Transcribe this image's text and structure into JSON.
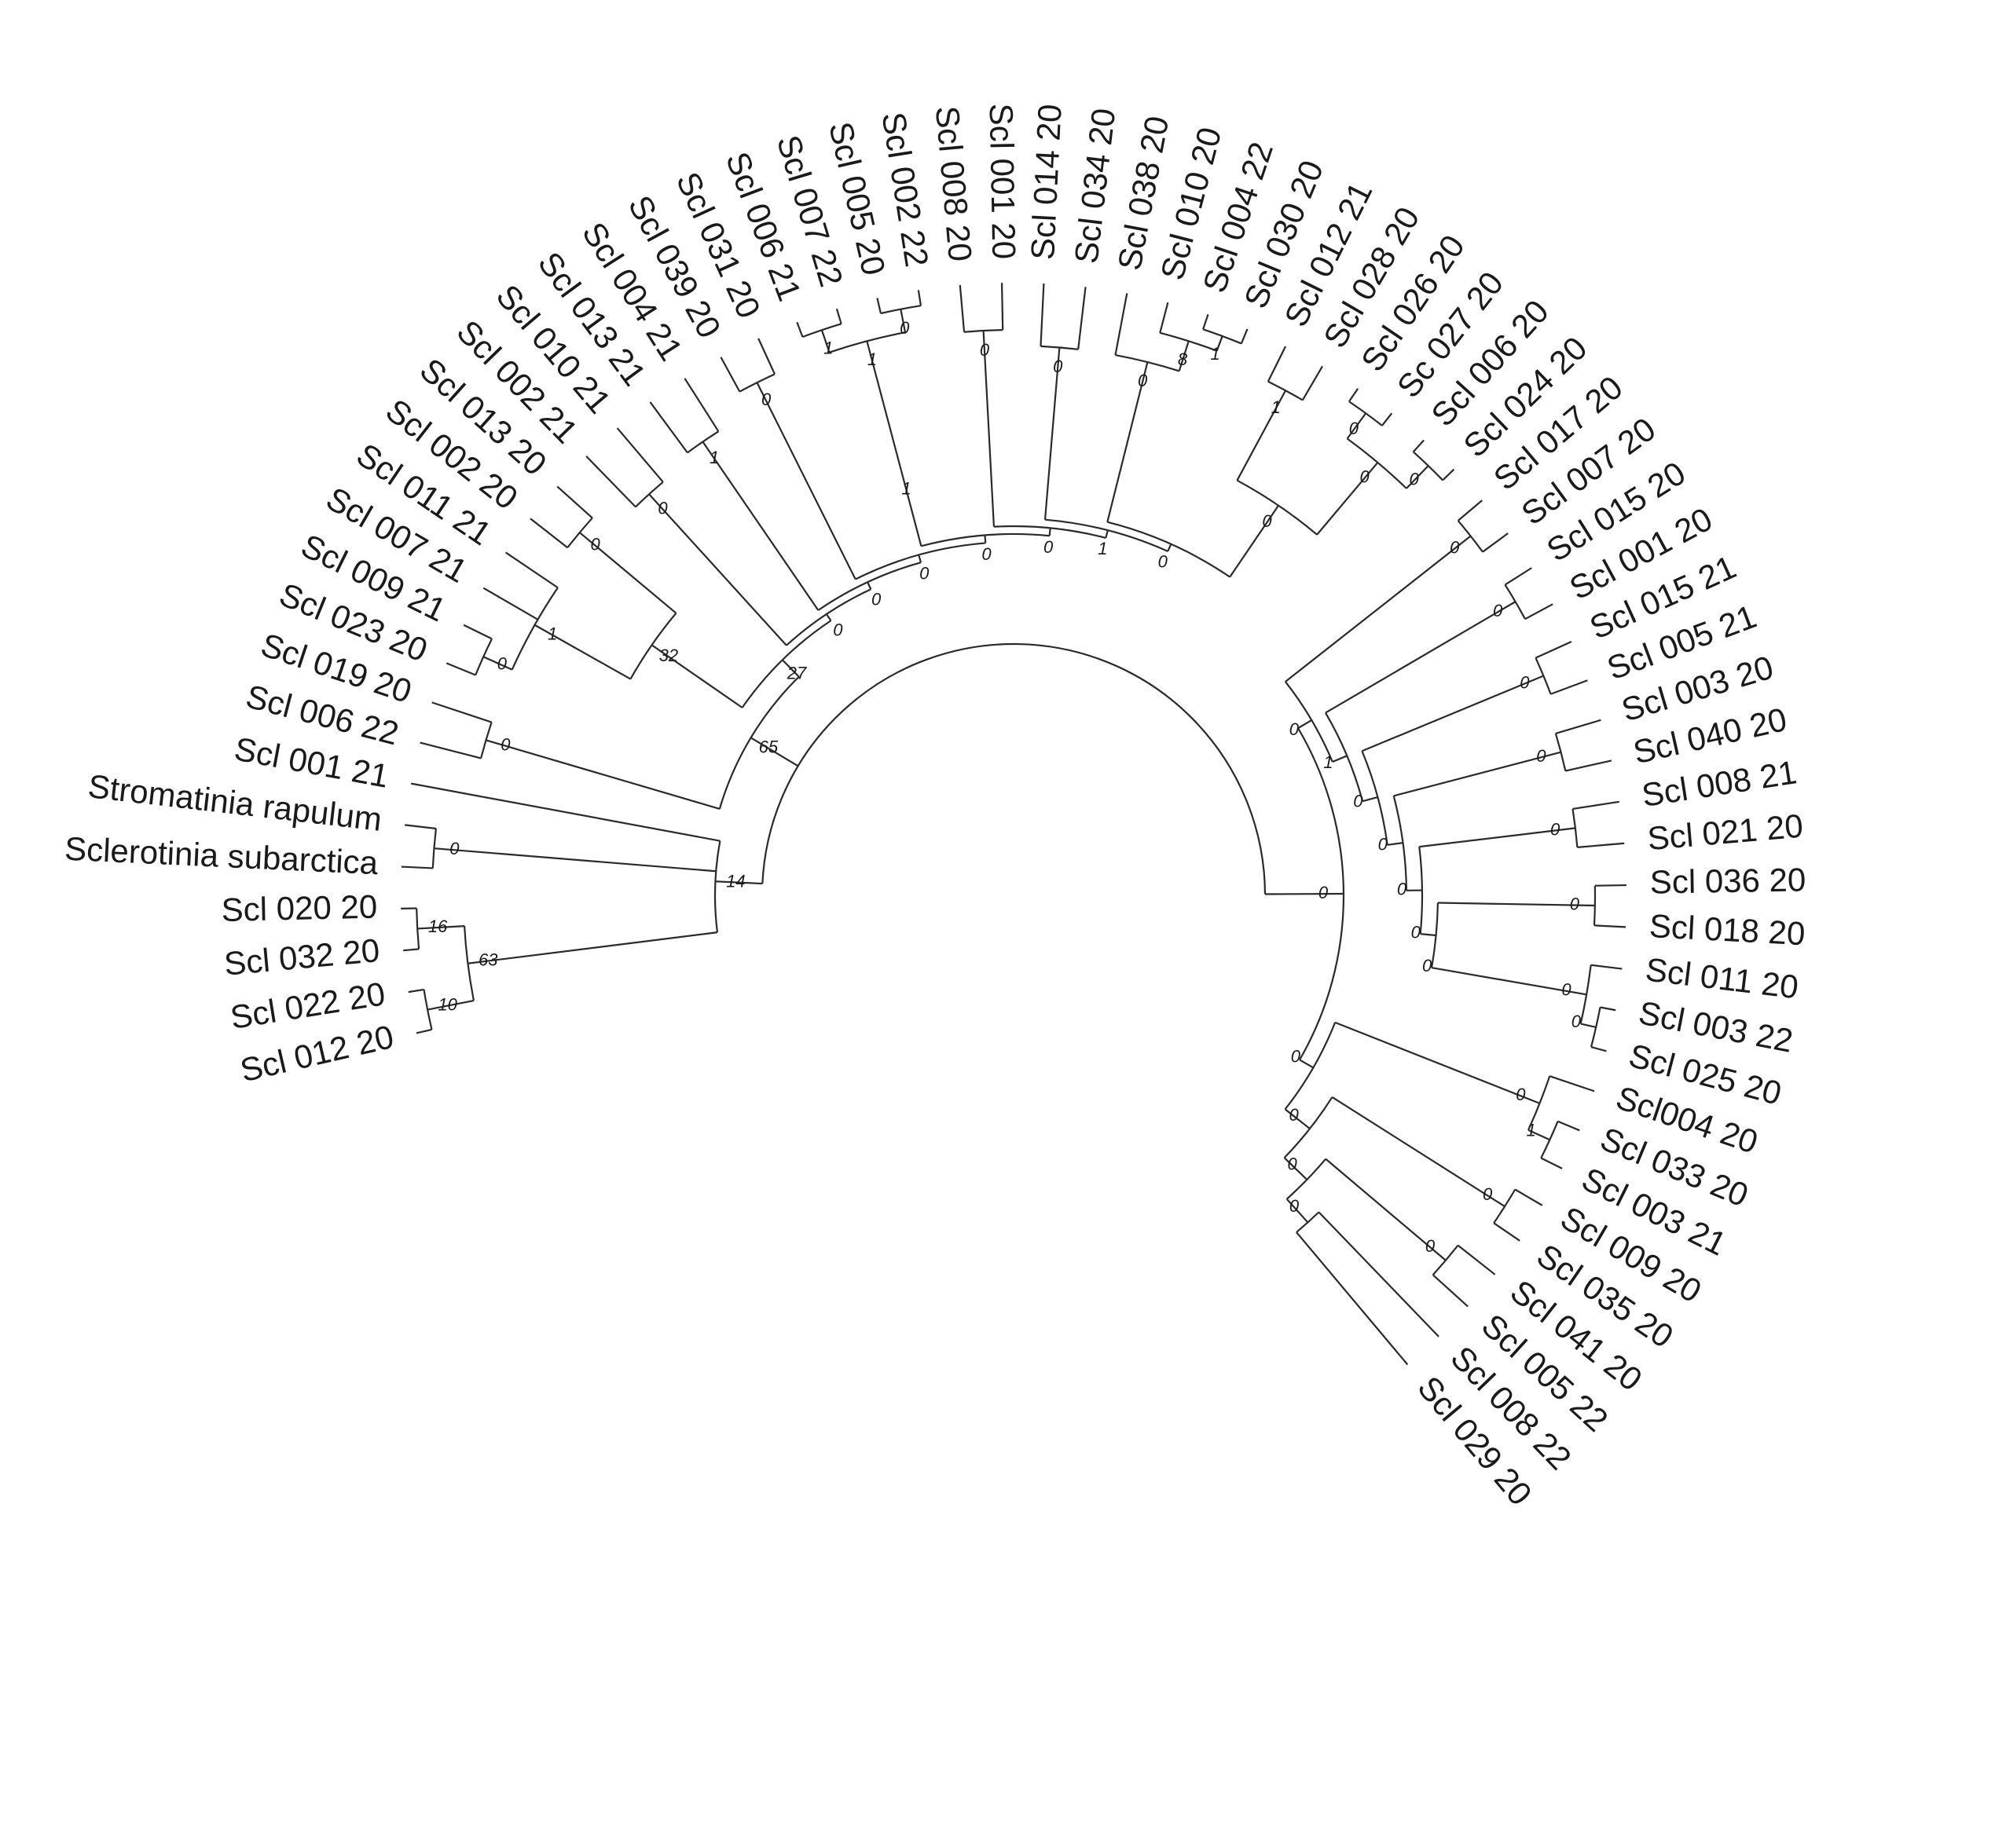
{
  "figure": {
    "type": "circular-cladogram",
    "line_color": "#2a2a2a",
    "text_color": "#1a1a1a",
    "background": "#ffffff"
  },
  "leaves": [
    "Scl 012 20",
    "Scl 022 20",
    "Scl 032 20",
    "Scl 020 20",
    "Sclerotinia subarctica",
    "Stromatinia rapulum",
    "Scl 001 21",
    "Scl 006 22",
    "Scl 019 20",
    "Scl 023 20",
    "Scl 009 21",
    "Scl 007 21",
    "Scl 011 21",
    "Scl 002 20",
    "Scl 013 20",
    "Scl 002 21",
    "Scl 010 21",
    "Scl 013 21",
    "Scl 004 21",
    "Scl 039 20",
    "Scl 031 20",
    "Scl 006 21",
    "Scl 007 22",
    "Scl 005 20",
    "Scl 002 22",
    "Scl 008 20",
    "Scl 001 20",
    "Scl 014 20",
    "Scl 034 20",
    "Scl 038 20",
    "Scl 010 20",
    "Scl 004 22",
    "Scl 030 20",
    "Scl 012 21",
    "Scl 028 20",
    "Scl 026 20",
    "Sc 027 20",
    "Scl 006 20",
    "Scl 024 20",
    "Scl 017 20",
    "Scl 007 20",
    "Scl 015 20",
    "Scl 001 20",
    "Scl 015 21",
    "Scl 005 21",
    "Scl 003 20",
    "Scl 040 20",
    "Scl 008 21",
    "Scl 021 20",
    "Scl 036 20",
    "Scl 018 20",
    "Scl 011 20",
    "Scl 003 22",
    "Scl 025 20",
    "Scl004 20",
    "Scl 033 20",
    "Scl 003 21",
    "Scl 009 20",
    "Scl 035 20",
    "Scl 041 20",
    "Scl 005 22",
    "Scl 008 22",
    "Scl 029 20"
  ],
  "support_values": [
    "14",
    "63",
    "10",
    "16",
    "0",
    "65",
    "0",
    "27",
    "32",
    "1",
    "0",
    "0",
    "0",
    "0",
    "0",
    "1",
    "0",
    "0",
    "0",
    "1",
    "1",
    "1",
    "0",
    "0",
    "0",
    "1",
    "0",
    "0",
    "0",
    "8",
    "1",
    "0",
    "1",
    "0",
    "0",
    "0",
    "0",
    "0",
    "0",
    "1",
    "0",
    "0",
    "0",
    "0",
    "0",
    "0",
    "0",
    "0",
    "0",
    "0",
    "0",
    "0",
    "0",
    "0",
    "1",
    "0",
    "0",
    "0",
    "0",
    "0",
    "0",
    "0"
  ]
}
